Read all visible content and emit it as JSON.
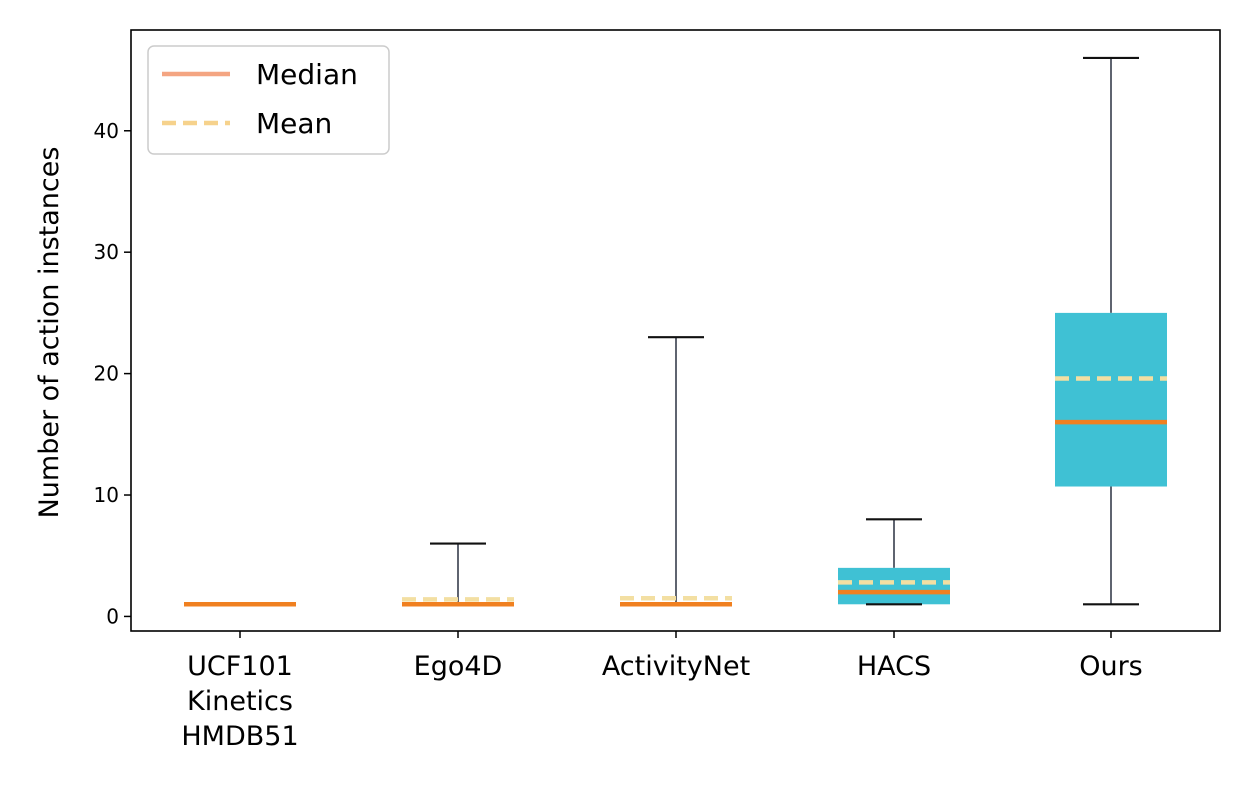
{
  "chart_data": {
    "type": "box",
    "ylabel": "Number of action instances",
    "xlabel": "",
    "ylim": [
      -1.2,
      48.3
    ],
    "yticks": [
      0,
      10,
      20,
      30,
      40
    ],
    "grid": false,
    "legend_placement": "top-left",
    "legend": [
      {
        "name": "Median",
        "style": "solid",
        "color": "#f4a582"
      },
      {
        "name": "Mean",
        "style": "dashed",
        "color": "#f6d28c"
      }
    ],
    "colors": {
      "box_fill": "#3fc1d4",
      "median_line": "#f08020",
      "mean_line": "#f3dfa2",
      "whisker": "#5f6470",
      "cap": "#111111"
    },
    "categories": [
      {
        "label_lines": [
          "UCF101",
          "Kinetics",
          "HMDB51"
        ],
        "min": 1,
        "q1": 1,
        "median": 1,
        "q3": 1,
        "max": 1,
        "mean": 1
      },
      {
        "label_lines": [
          "Ego4D"
        ],
        "min": 1,
        "q1": 1,
        "median": 1,
        "q3": 1,
        "max": 6,
        "mean": 1.4
      },
      {
        "label_lines": [
          "ActivityNet"
        ],
        "min": 1,
        "q1": 1,
        "median": 1,
        "q3": 1,
        "max": 23,
        "mean": 1.5
      },
      {
        "label_lines": [
          "HACS"
        ],
        "min": 1,
        "q1": 1,
        "median": 2,
        "q3": 4,
        "max": 8,
        "mean": 2.8
      },
      {
        "label_lines": [
          "Ours"
        ],
        "min": 1,
        "q1": 10.7,
        "median": 16,
        "q3": 25,
        "max": 46,
        "mean": 19.6
      }
    ]
  }
}
